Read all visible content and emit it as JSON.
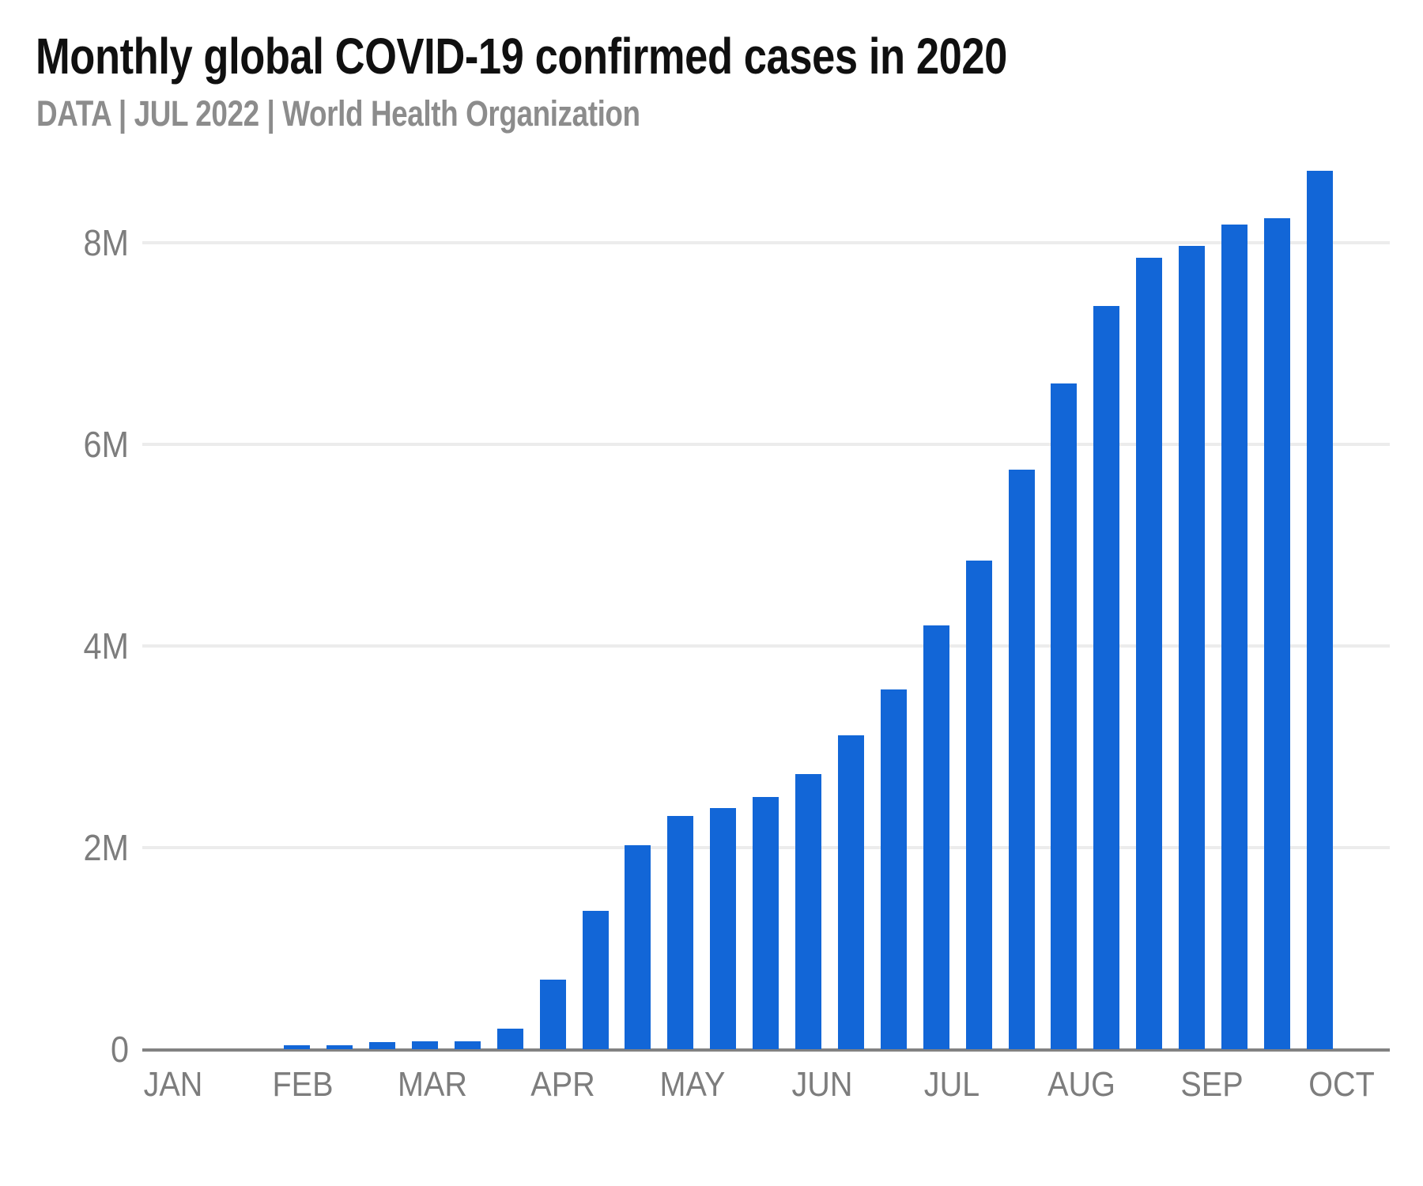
{
  "header": {
    "title": "Monthly global COVID-19 confirmed cases in 2020",
    "subtitle": "DATA | JUL 2022 | World Health Organization"
  },
  "colors": {
    "bar": "#1266d7",
    "gridline": "#ececec",
    "axis_line": "#828282",
    "tick_label": "#7d7d7d",
    "subtitle_text": "#8c8c8c",
    "title_text": "#101010"
  },
  "chart_data": {
    "type": "bar",
    "title": "Monthly global COVID-19 confirmed cases in 2020",
    "subtitle": "DATA | JUL 2022 | World Health Organization",
    "xlabel": "",
    "ylabel": "",
    "y_unit": "cases (millions)",
    "ylim": [
      0,
      8.8
    ],
    "grid": "horizontal",
    "legend": "none",
    "x_tick_labels": [
      "JAN",
      "FEB",
      "MAR",
      "APR",
      "MAY",
      "JUN",
      "JUL",
      "AUG",
      "SEP",
      "OCT"
    ],
    "y_ticks": [
      {
        "label": "0",
        "value": 0
      },
      {
        "label": "2M",
        "value": 2
      },
      {
        "label": "4M",
        "value": 4
      },
      {
        "label": "6M",
        "value": 6
      },
      {
        "label": "8M",
        "value": 8
      }
    ],
    "bars_per_month": 3,
    "series": [
      {
        "name": "Confirmed cases",
        "values_millions": [
          0,
          0,
          0,
          0.04,
          0.04,
          0.07,
          0.08,
          0.08,
          0.2,
          0.69,
          1.37,
          2.02,
          2.31,
          2.39,
          2.5,
          2.73,
          3.11,
          3.57,
          4.2,
          4.85,
          5.75,
          6.6,
          7.37,
          7.85,
          7.97,
          8.18,
          8.24,
          8.71
        ]
      }
    ]
  }
}
